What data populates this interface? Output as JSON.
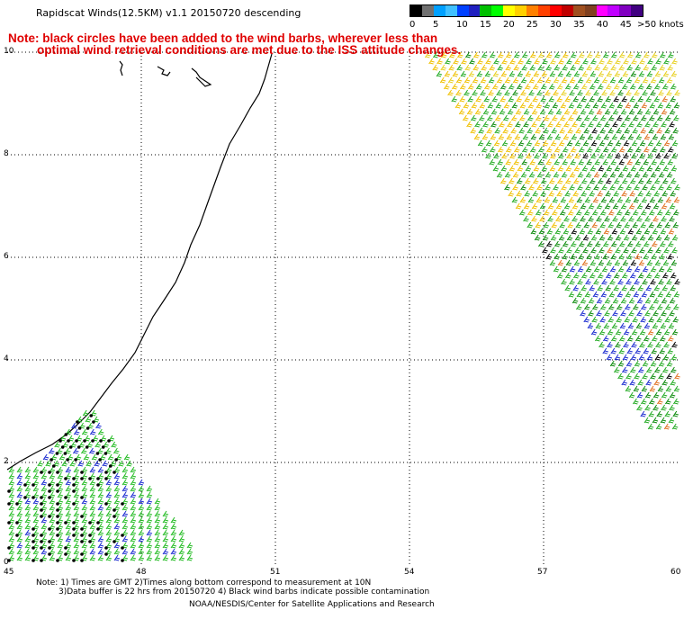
{
  "title": "Rapidscat Winds(12.5KM) v1.1 20150720 descending",
  "notice": {
    "line1": "Note: black circles have been added to the wind barbs, wherever less than",
    "line2": "optimal wind retrieval conditions are met due to the ISS attitude changes."
  },
  "legend": {
    "unit_label": ">50 knots",
    "bins": [
      {
        "label": "0",
        "color": "#000000"
      },
      {
        "label": "",
        "color": "#707070"
      },
      {
        "label": "5",
        "color": "#00a0ff"
      },
      {
        "label": "",
        "color": "#40c0ff"
      },
      {
        "label": "10",
        "color": "#0040ff"
      },
      {
        "label": "",
        "color": "#2020c0"
      },
      {
        "label": "15",
        "color": "#00c000"
      },
      {
        "label": "",
        "color": "#00ff00"
      },
      {
        "label": "20",
        "color": "#ffff00"
      },
      {
        "label": "",
        "color": "#ffd000"
      },
      {
        "label": "25",
        "color": "#ff8000"
      },
      {
        "label": "",
        "color": "#ff4000"
      },
      {
        "label": "30",
        "color": "#ff0000"
      },
      {
        "label": "",
        "color": "#c00000"
      },
      {
        "label": "35",
        "color": "#a05020"
      },
      {
        "label": "",
        "color": "#804020"
      },
      {
        "label": "40",
        "color": "#ff00ff"
      },
      {
        "label": "",
        "color": "#c000ff"
      },
      {
        "label": "45",
        "color": "#8000c0"
      },
      {
        "label": "",
        "color": "#400080"
      }
    ]
  },
  "axes": {
    "y_ticks": [
      "10",
      "8",
      "6",
      "4",
      "2",
      "0"
    ],
    "x_ticks": [
      "45",
      "48",
      "51",
      "54",
      "57",
      "60"
    ]
  },
  "footer": {
    "line1": "Note: 1) Times are GMT 2)Times along bottom correspond to measurement at 10N",
    "line2": "3)Data buffer is 22 hrs from 20150720 4) Black wind barbs indicate possible contamination",
    "line3": "NOAA/NESDIS/Center for Satellite Applications and Research"
  }
}
